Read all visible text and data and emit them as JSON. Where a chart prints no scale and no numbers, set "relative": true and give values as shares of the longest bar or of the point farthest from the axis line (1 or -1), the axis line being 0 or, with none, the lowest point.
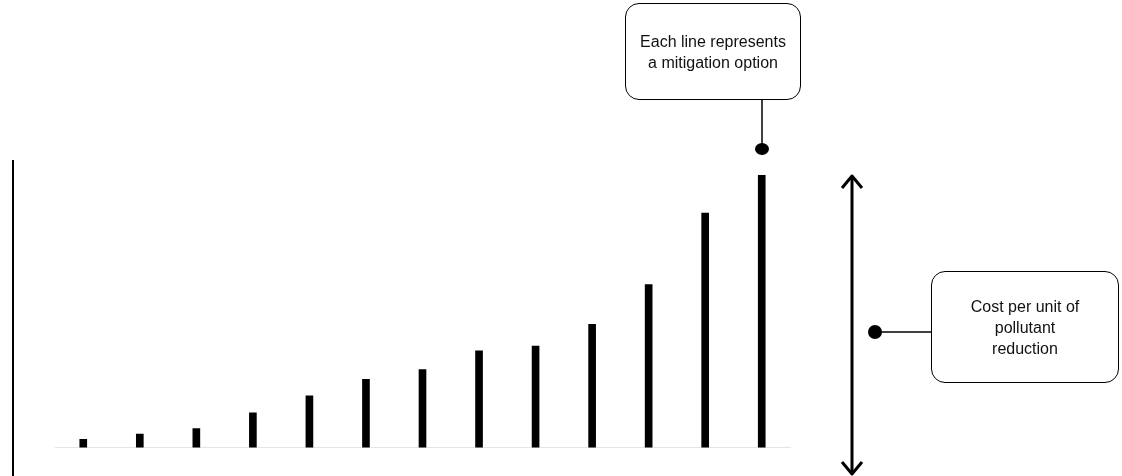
{
  "chart_data": {
    "type": "bar",
    "categories": [
      null,
      null,
      null,
      null,
      null,
      null,
      null,
      null,
      null,
      null,
      null,
      null,
      null
    ],
    "values": [
      0.03,
      0.05,
      0.07,
      0.128,
      0.19,
      0.25,
      0.286,
      0.355,
      0.372,
      0.452,
      0.598,
      0.86,
      1
    ],
    "color": "#000000",
    "relative": true,
    "annotations": [
      "Each line represents a mitigation option",
      "Cost per unit of pollutant reduction"
    ]
  }
}
